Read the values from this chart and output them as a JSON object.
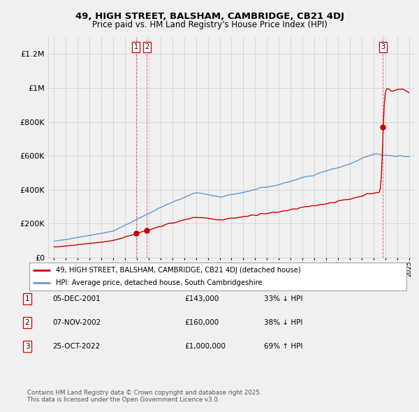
{
  "title1": "49, HIGH STREET, BALSHAM, CAMBRIDGE, CB21 4DJ",
  "title2": "Price paid vs. HM Land Registry's House Price Index (HPI)",
  "legend_line1": "49, HIGH STREET, BALSHAM, CAMBRIDGE, CB21 4DJ (detached house)",
  "legend_line2": "HPI: Average price, detached house, South Cambridgeshire",
  "transactions": [
    {
      "num": 1,
      "date": "05-DEC-2001",
      "price": 143000,
      "price_str": "£143,000",
      "pct": "33%",
      "dir": "↓",
      "year_x": 2001.92
    },
    {
      "num": 2,
      "date": "07-NOV-2002",
      "price": 160000,
      "price_str": "£160,000",
      "pct": "38%",
      "dir": "↓",
      "year_x": 2002.85
    },
    {
      "num": 3,
      "date": "25-OCT-2022",
      "price": 1000000,
      "price_str": "£1,000,000",
      "pct": "69%",
      "dir": "↑",
      "year_x": 2022.81
    }
  ],
  "footnote": "Contains HM Land Registry data © Crown copyright and database right 2025.\nThis data is licensed under the Open Government Licence v3.0.",
  "hpi_color": "#6699cc",
  "price_color": "#cc0000",
  "vline_color": "#cc0000",
  "background_color": "#f0f0f0",
  "grid_color": "#cccccc",
  "plot_bg": "#f0f0f0",
  "ylim": [
    0,
    1300000
  ],
  "xlim": [
    1994.5,
    2025.5
  ],
  "yticks": [
    0,
    200000,
    400000,
    600000,
    800000,
    1000000,
    1200000
  ],
  "ytick_labels": [
    "£0",
    "£200K",
    "£400K",
    "£600K",
    "£800K",
    "£1M",
    "£1.2M"
  ]
}
